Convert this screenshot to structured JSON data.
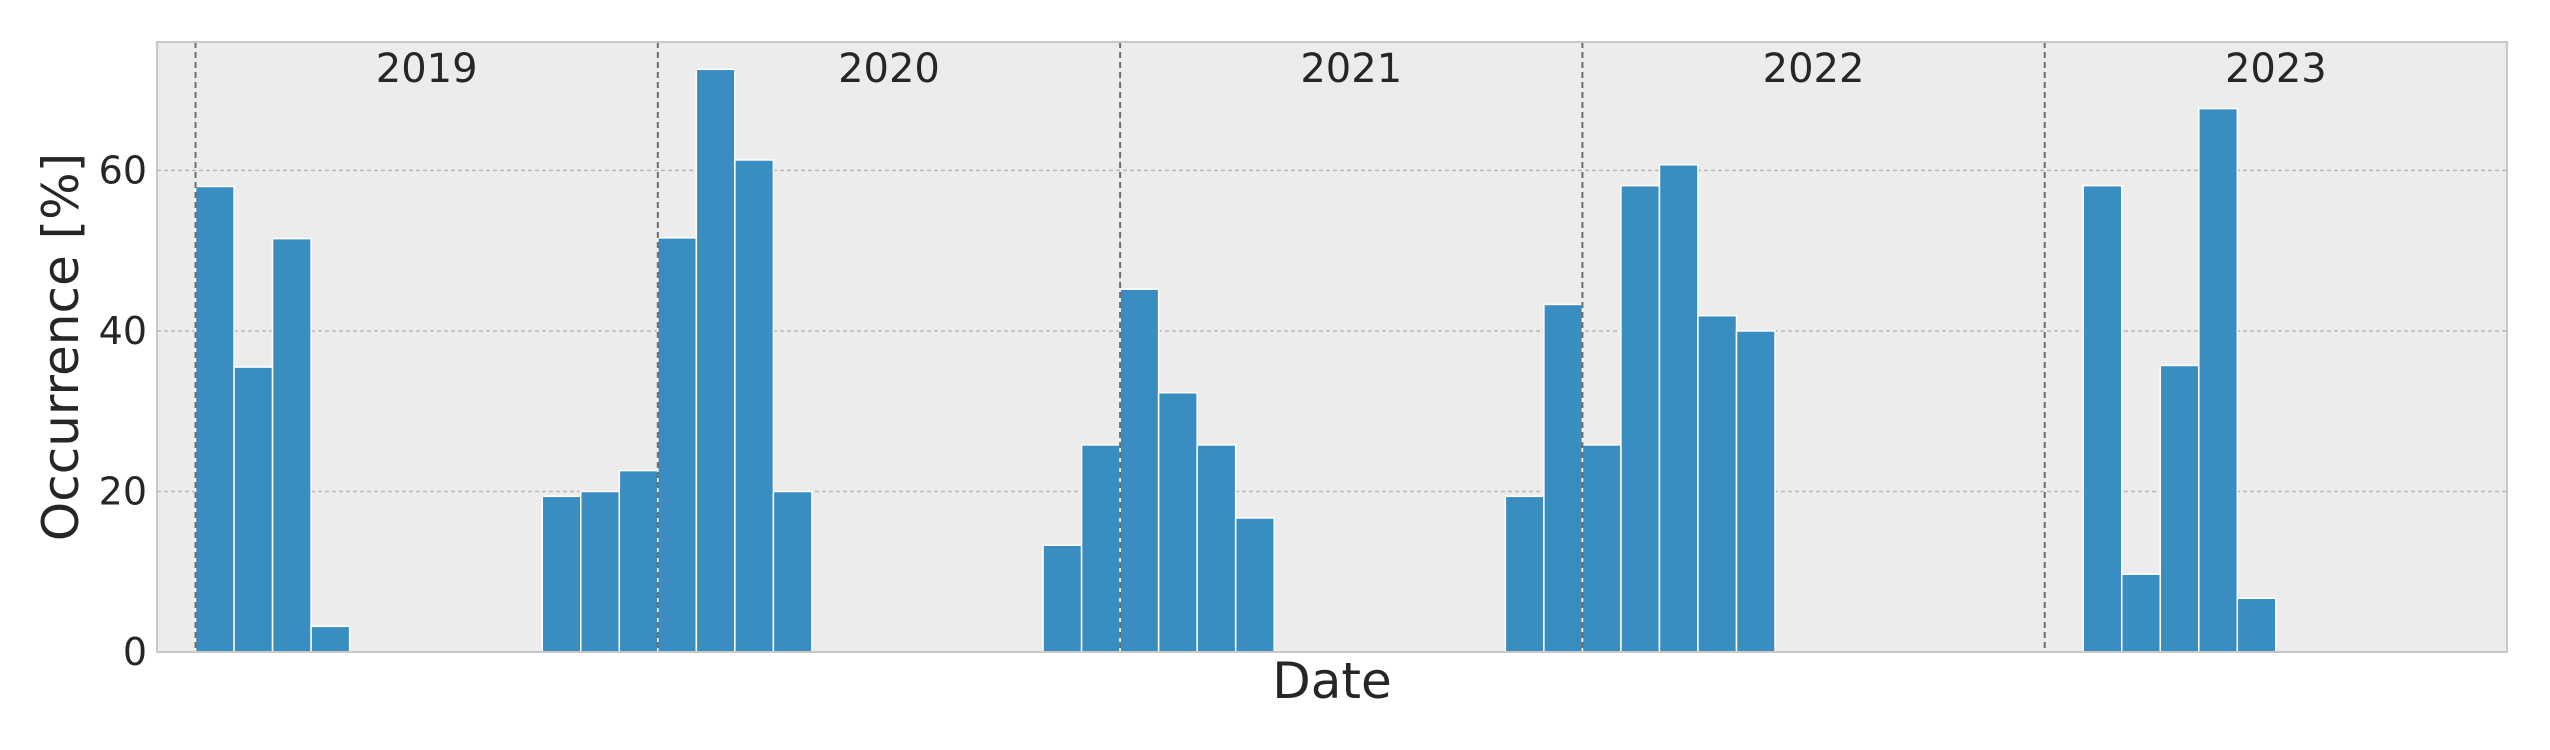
{
  "chart_data": {
    "type": "bar",
    "xlabel": "Date",
    "ylabel": "Occurrence [%]",
    "ylim": [
      0,
      76
    ],
    "yticks": [
      0,
      20,
      40,
      60
    ],
    "grid": true,
    "colors": {
      "bar": "#3a8dc0",
      "background": "#ececec",
      "grid": "#b8b8b8",
      "divider": "#6e6e6e"
    },
    "year_boundaries": [
      {
        "label": "2019",
        "start": "2019-01"
      },
      {
        "label": "2020",
        "start": "2020-01"
      },
      {
        "label": "2021",
        "start": "2021-01"
      },
      {
        "label": "2022",
        "start": "2022-01"
      },
      {
        "label": "2023",
        "start": "2023-01"
      }
    ],
    "x_range": [
      "2018-12",
      "2023-12"
    ],
    "series": [
      {
        "x": [
          "2018-12",
          "2019-01",
          "2019-02",
          "2019-03",
          "2019-04",
          "2019-05",
          "2019-06",
          "2019-07",
          "2019-08",
          "2019-09",
          "2019-10",
          "2019-11",
          "2019-12",
          "2020-01",
          "2020-02",
          "2020-03",
          "2020-04",
          "2020-05",
          "2020-06",
          "2020-07",
          "2020-08",
          "2020-09",
          "2020-10",
          "2020-11",
          "2020-12",
          "2021-01",
          "2021-02",
          "2021-03",
          "2021-04",
          "2021-05",
          "2021-06",
          "2021-07",
          "2021-08",
          "2021-09",
          "2021-10",
          "2021-11",
          "2021-12",
          "2022-01",
          "2022-02",
          "2022-03",
          "2022-04",
          "2022-05",
          "2022-06",
          "2022-07",
          "2022-08",
          "2022-09",
          "2022-10",
          "2022-11",
          "2022-12",
          "2023-01",
          "2023-02",
          "2023-03",
          "2023-04",
          "2023-05",
          "2023-06",
          "2023-07",
          "2023-08",
          "2023-09",
          "2023-10",
          "2023-11",
          "2023-12"
        ],
        "values": [
          0,
          58,
          35.5,
          51.5,
          3.2,
          0,
          0,
          0,
          0,
          0,
          19.4,
          20,
          22.6,
          51.6,
          72.6,
          61.3,
          20,
          0,
          0,
          0,
          0,
          0,
          0,
          13.3,
          25.8,
          45.2,
          32.3,
          25.8,
          16.7,
          0,
          0,
          0,
          0,
          0,
          0,
          19.4,
          43.3,
          25.8,
          58.1,
          60.7,
          41.9,
          40,
          0,
          0,
          0,
          0,
          0,
          0,
          0,
          0,
          58.1,
          9.7,
          35.7,
          67.7,
          6.7,
          0,
          0,
          0,
          0,
          0,
          0
        ]
      }
    ]
  }
}
